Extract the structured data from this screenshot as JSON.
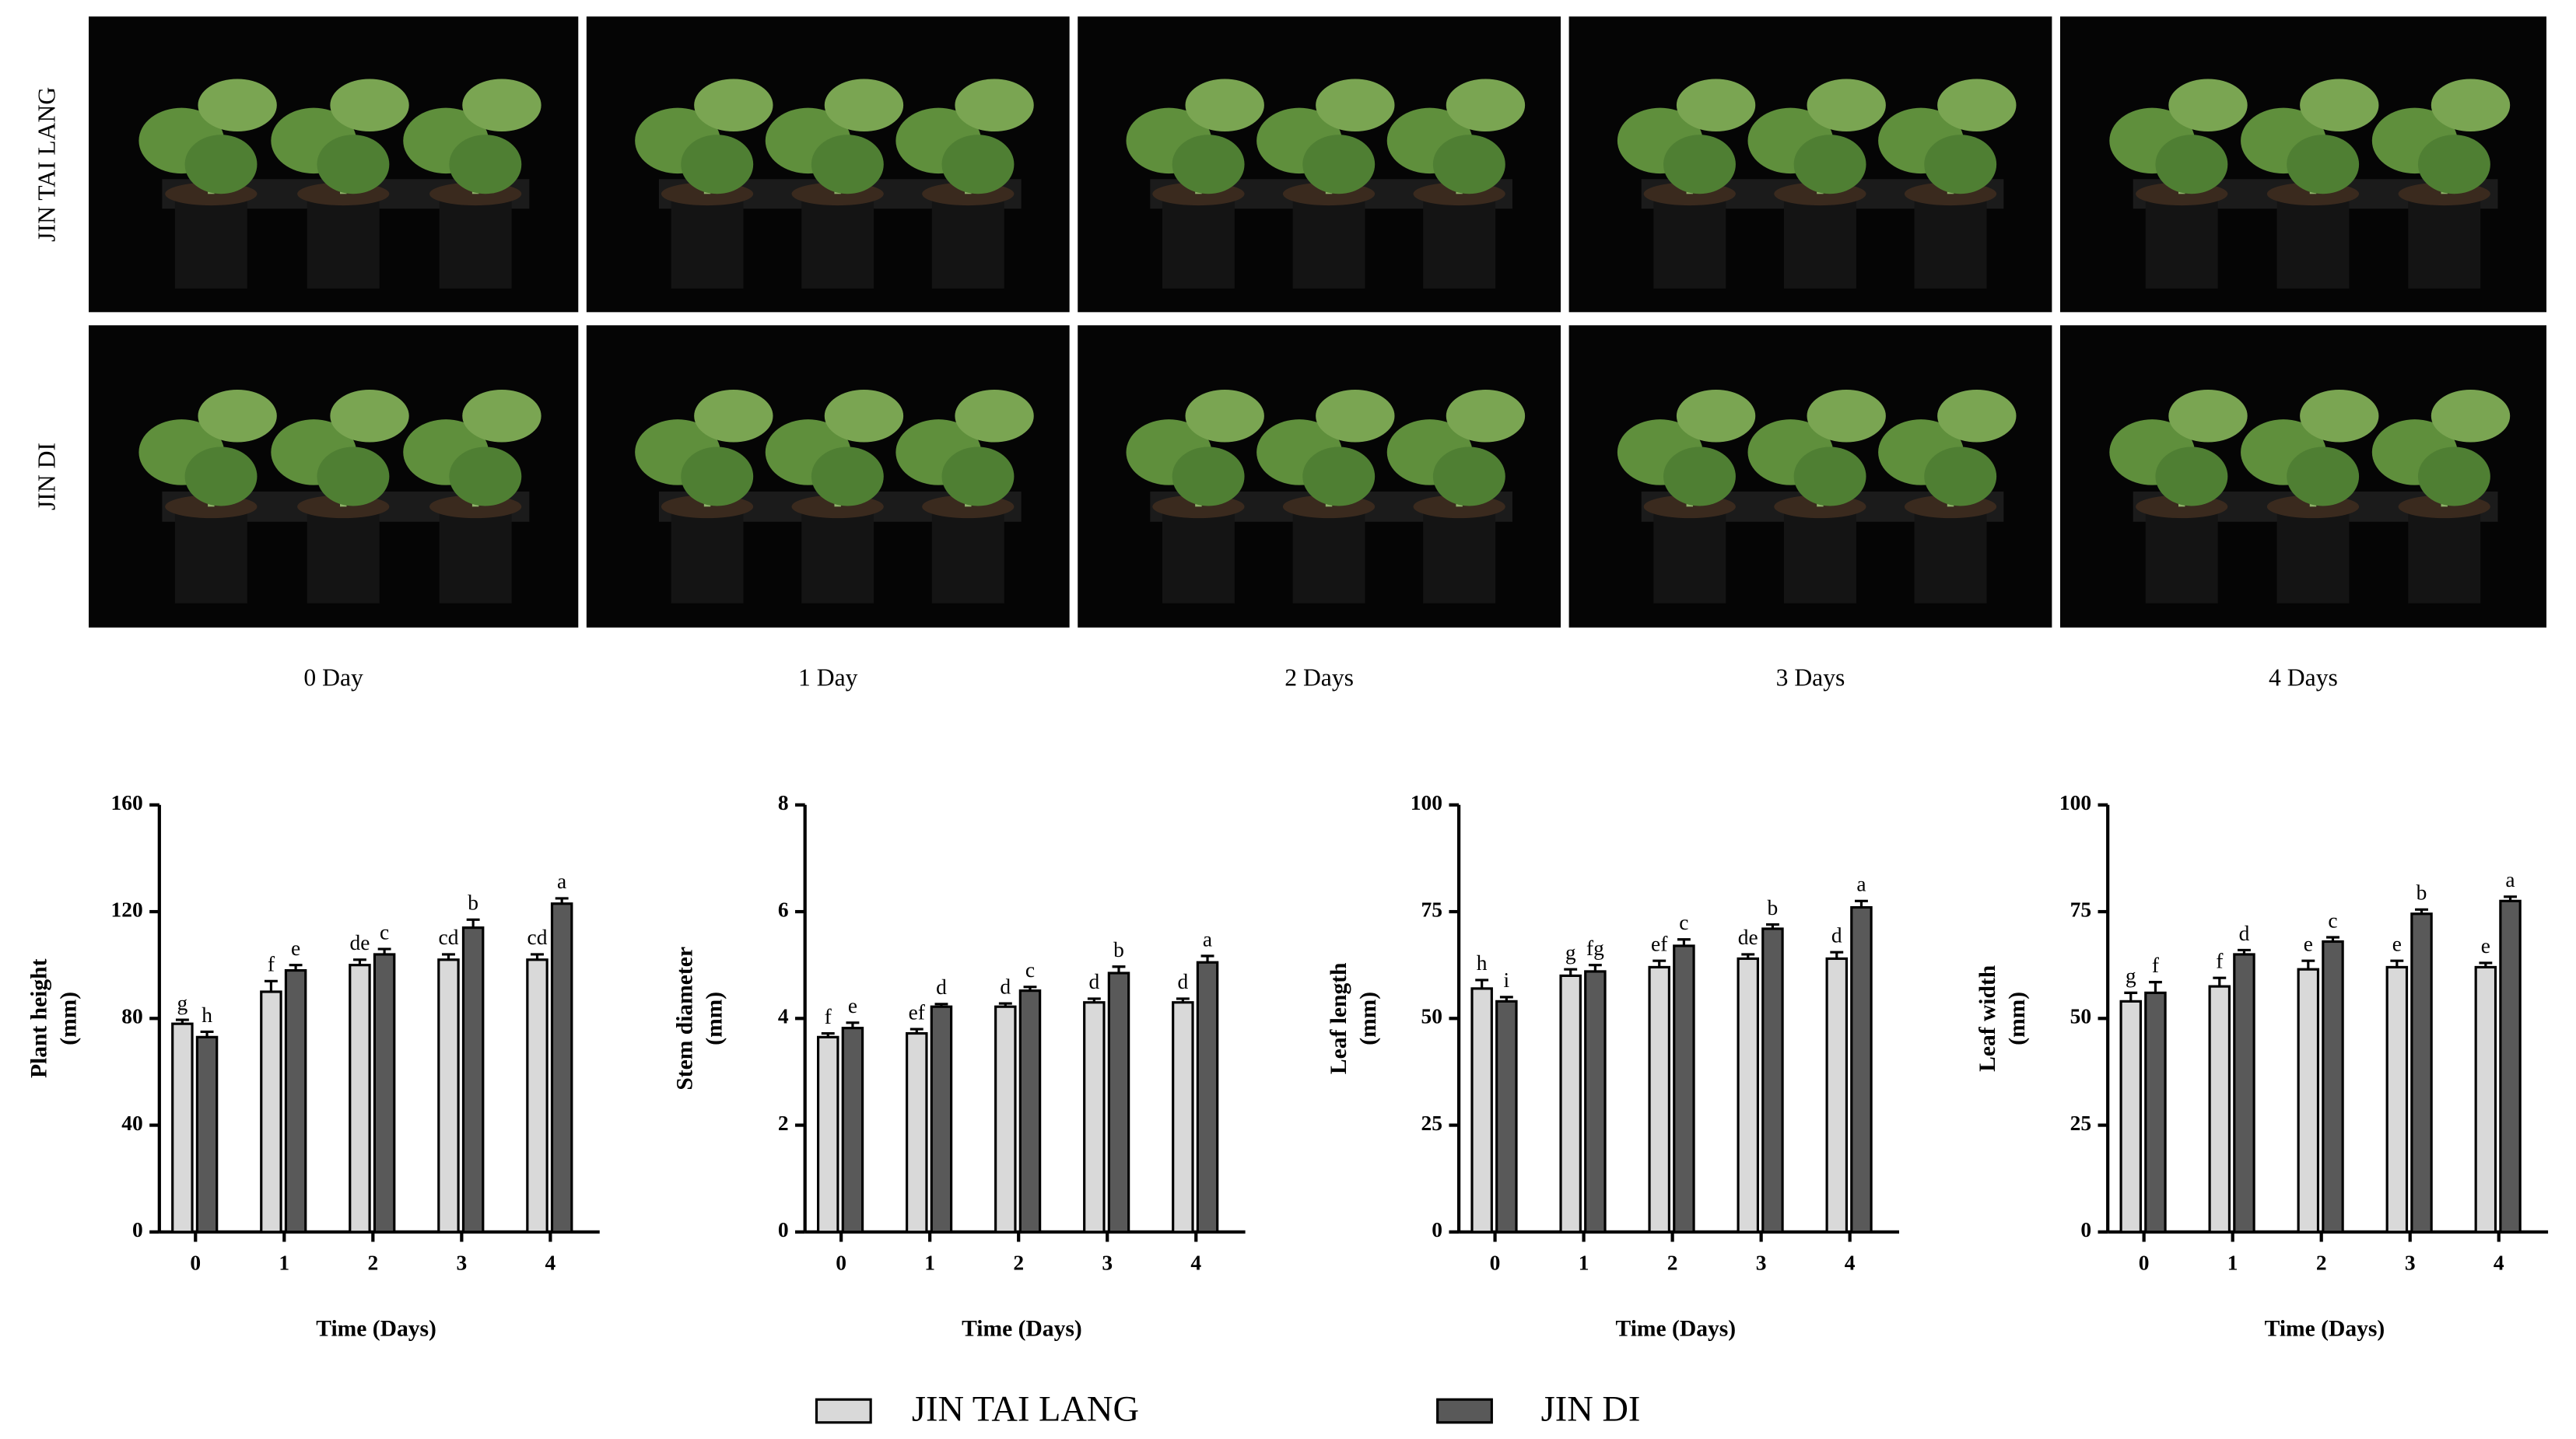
{
  "photo_panel": {
    "rows": [
      "JIN TAI LANG",
      "JIN DI"
    ],
    "columns": [
      "0 Day",
      "1 Day",
      "2 Days",
      "3 Days",
      "4 Days"
    ]
  },
  "legend": [
    {
      "name": "JIN TAI LANG",
      "color": "#d9d9d9"
    },
    {
      "name": "JIN DI",
      "color": "#595959"
    }
  ],
  "chart_data": [
    {
      "type": "bar",
      "ylabel": [
        "Plant height",
        "(mm)"
      ],
      "xlabel": "Time (Days)",
      "categories": [
        "0",
        "1",
        "2",
        "3",
        "4"
      ],
      "ylim": [
        0,
        160
      ],
      "yticks": [
        0,
        40,
        80,
        120,
        160
      ],
      "series": [
        {
          "color": "#d9d9d9",
          "values": [
            78,
            90,
            100,
            102,
            102
          ],
          "errors": [
            1.5,
            4,
            2,
            2,
            2
          ],
          "letters": [
            "g",
            "f",
            "de",
            "cd",
            "cd"
          ]
        },
        {
          "color": "#595959",
          "values": [
            73,
            98,
            104,
            114,
            123
          ],
          "errors": [
            2,
            2,
            2,
            3,
            2
          ],
          "letters": [
            "h",
            "e",
            "c",
            "b",
            "a"
          ]
        }
      ]
    },
    {
      "type": "bar",
      "ylabel": [
        "Stem diameter",
        "(mm)"
      ],
      "xlabel": "Time (Days)",
      "categories": [
        "0",
        "1",
        "2",
        "3",
        "4"
      ],
      "ylim": [
        0,
        8
      ],
      "yticks": [
        0,
        2,
        4,
        6,
        8
      ],
      "series": [
        {
          "color": "#d9d9d9",
          "values": [
            3.65,
            3.72,
            4.22,
            4.3,
            4.3
          ],
          "errors": [
            0.07,
            0.08,
            0.06,
            0.07,
            0.07
          ],
          "letters": [
            "f",
            "ef",
            "d",
            "d",
            "d"
          ]
        },
        {
          "color": "#595959",
          "values": [
            3.82,
            4.22,
            4.52,
            4.85,
            5.05
          ],
          "errors": [
            0.1,
            0.05,
            0.07,
            0.12,
            0.12
          ],
          "letters": [
            "e",
            "d",
            "c",
            "b",
            "a"
          ]
        }
      ]
    },
    {
      "type": "bar",
      "ylabel": [
        "Leaf length",
        "(mm)"
      ],
      "xlabel": "Time (Days)",
      "categories": [
        "0",
        "1",
        "2",
        "3",
        "4"
      ],
      "ylim": [
        0,
        100
      ],
      "yticks": [
        0,
        25,
        50,
        75,
        100
      ],
      "series": [
        {
          "color": "#d9d9d9",
          "values": [
            57,
            60,
            62,
            64,
            64
          ],
          "errors": [
            2,
            1.5,
            1.5,
            1,
            1.5
          ],
          "letters": [
            "h",
            "g",
            "ef",
            "de",
            "d"
          ]
        },
        {
          "color": "#595959",
          "values": [
            54,
            61,
            67,
            71,
            76
          ],
          "errors": [
            1,
            1.5,
            1.5,
            1,
            1.5
          ],
          "letters": [
            "i",
            "fg",
            "c",
            "b",
            "a"
          ]
        }
      ]
    },
    {
      "type": "bar",
      "ylabel": [
        "Leaf width",
        "(mm)"
      ],
      "xlabel": "Time (Days)",
      "categories": [
        "0",
        "1",
        "2",
        "3",
        "4"
      ],
      "ylim": [
        0,
        100
      ],
      "yticks": [
        0,
        25,
        50,
        75,
        100
      ],
      "series": [
        {
          "color": "#d9d9d9",
          "values": [
            54,
            57.5,
            61.5,
            62,
            62
          ],
          "errors": [
            2,
            2,
            2,
            1.5,
            1
          ],
          "letters": [
            "g",
            "f",
            "e",
            "e",
            "e"
          ]
        },
        {
          "color": "#595959",
          "values": [
            56,
            65,
            68,
            74.5,
            77.5
          ],
          "errors": [
            2.5,
            1,
            1,
            1,
            1
          ],
          "letters": [
            "f",
            "d",
            "c",
            "b",
            "a"
          ]
        }
      ]
    }
  ]
}
